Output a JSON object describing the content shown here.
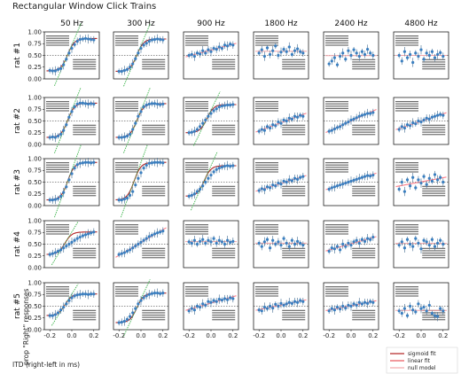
{
  "title": "Rectangular Window Click Trains",
  "columns": [
    "50 Hz",
    "300 Hz",
    "900 Hz",
    "1800 Hz",
    "2400 Hz",
    "4800 Hz"
  ],
  "rows": [
    "rat #1",
    "rat #2",
    "rat #3",
    "rat #4",
    "rat #5"
  ],
  "xlabel": "ITD (right-left in ms)",
  "ylabel": "prop \"Right\" responses",
  "x_ticks": [
    "-0.2",
    "0.0",
    "0.2"
  ],
  "y_ticks": [
    "0.00",
    "0.25",
    "0.50",
    "0.75",
    "1.00"
  ],
  "legend": [
    {
      "label": "sigmoid fit",
      "color": "#b22222"
    },
    {
      "label": "linear fit",
      "color": "#e8535a"
    },
    {
      "label": "null model",
      "color": "#f4a6aa"
    }
  ],
  "colors": {
    "points": "#3a7fc0",
    "errorbars": "#5a7e9e",
    "sigmoid": "#b22222",
    "linear": "#ff7f8a",
    "slope": "#3cb44b",
    "chance": "#222222"
  },
  "chart_data": {
    "type": "scatter",
    "layout": "grid",
    "xlim": [
      -0.25,
      0.25
    ],
    "ylim": [
      0,
      1
    ],
    "x": [
      -0.2,
      -0.175,
      -0.15,
      -0.125,
      -0.1,
      -0.075,
      -0.05,
      -0.025,
      0.0,
      0.025,
      0.05,
      0.075,
      0.1,
      0.125,
      0.15,
      0.175,
      0.2
    ],
    "chance_line": 0.5,
    "panels": [
      [
        {
          "fit": "sigmoid",
          "y": [
            0.18,
            0.17,
            0.17,
            0.2,
            0.22,
            0.3,
            0.42,
            0.55,
            0.65,
            0.73,
            0.8,
            0.84,
            0.85,
            0.86,
            0.85,
            0.84,
            0.83
          ]
        },
        {
          "fit": "sigmoid",
          "y": [
            0.16,
            0.16,
            0.18,
            0.2,
            0.25,
            0.32,
            0.43,
            0.55,
            0.65,
            0.72,
            0.76,
            0.8,
            0.83,
            0.84,
            0.85,
            0.84,
            0.83
          ]
        },
        {
          "fit": "linear",
          "y": [
            0.5,
            0.52,
            0.48,
            0.55,
            0.53,
            0.6,
            0.55,
            0.62,
            0.58,
            0.65,
            0.63,
            0.68,
            0.65,
            0.72,
            0.7,
            0.74,
            0.72
          ]
        },
        {
          "fit": "null",
          "y": [
            0.55,
            0.62,
            0.48,
            0.66,
            0.52,
            0.6,
            0.7,
            0.5,
            0.57,
            0.63,
            0.58,
            0.68,
            0.52,
            0.6,
            0.64,
            0.58,
            0.55
          ]
        },
        {
          "fit": "null",
          "y": [
            0.32,
            0.38,
            0.45,
            0.3,
            0.48,
            0.55,
            0.42,
            0.6,
            0.5,
            0.62,
            0.55,
            0.48,
            0.58,
            0.52,
            0.63,
            0.55,
            0.5
          ]
        },
        {
          "fit": "null",
          "y": [
            0.5,
            0.38,
            0.58,
            0.45,
            0.52,
            0.35,
            0.55,
            0.48,
            0.62,
            0.42,
            0.55,
            0.5,
            0.58,
            0.45,
            0.52,
            0.56,
            0.48
          ]
        }
      ],
      [
        {
          "fit": "sigmoid",
          "y": [
            0.15,
            0.16,
            0.15,
            0.18,
            0.22,
            0.3,
            0.42,
            0.58,
            0.7,
            0.8,
            0.86,
            0.88,
            0.88,
            0.87,
            0.86,
            0.87,
            0.86
          ]
        },
        {
          "fit": "sigmoid",
          "y": [
            0.15,
            0.15,
            0.16,
            0.18,
            0.22,
            0.32,
            0.45,
            0.6,
            0.7,
            0.8,
            0.84,
            0.86,
            0.87,
            0.87,
            0.86,
            0.85,
            0.86
          ]
        },
        {
          "fit": "sigmoid",
          "y": [
            0.25,
            0.26,
            0.28,
            0.32,
            0.38,
            0.45,
            0.52,
            0.6,
            0.66,
            0.72,
            0.76,
            0.8,
            0.82,
            0.83,
            0.84,
            0.84,
            0.85
          ]
        },
        {
          "fit": "linear",
          "y": [
            0.28,
            0.32,
            0.3,
            0.38,
            0.35,
            0.42,
            0.4,
            0.48,
            0.45,
            0.52,
            0.5,
            0.56,
            0.54,
            0.6,
            0.58,
            0.62,
            0.6
          ]
        },
        {
          "fit": "linear",
          "y": [
            0.28,
            0.3,
            0.33,
            0.36,
            0.38,
            0.42,
            0.45,
            0.48,
            0.52,
            0.54,
            0.57,
            0.6,
            0.62,
            0.64,
            0.66,
            0.66,
            0.68
          ]
        },
        {
          "fit": "linear",
          "y": [
            0.32,
            0.38,
            0.35,
            0.42,
            0.4,
            0.46,
            0.44,
            0.5,
            0.48,
            0.52,
            0.56,
            0.54,
            0.58,
            0.6,
            0.62,
            0.64,
            0.62
          ]
        }
      ],
      [
        {
          "fit": "sigmoid",
          "y": [
            0.12,
            0.12,
            0.13,
            0.15,
            0.2,
            0.28,
            0.4,
            0.55,
            0.68,
            0.8,
            0.87,
            0.9,
            0.91,
            0.92,
            0.92,
            0.91,
            0.92
          ]
        },
        {
          "fit": "sigmoid",
          "y": [
            0.12,
            0.12,
            0.14,
            0.16,
            0.22,
            0.3,
            0.44,
            0.58,
            0.7,
            0.8,
            0.86,
            0.9,
            0.91,
            0.92,
            0.92,
            0.92,
            0.91
          ]
        },
        {
          "fit": "sigmoid",
          "y": [
            0.2,
            0.22,
            0.25,
            0.3,
            0.35,
            0.42,
            0.5,
            0.58,
            0.65,
            0.72,
            0.77,
            0.8,
            0.82,
            0.84,
            0.85,
            0.84,
            0.85
          ]
        },
        {
          "fit": "linear",
          "y": [
            0.32,
            0.36,
            0.34,
            0.4,
            0.38,
            0.44,
            0.42,
            0.48,
            0.46,
            0.52,
            0.5,
            0.55,
            0.53,
            0.58,
            0.56,
            0.6,
            0.62
          ]
        },
        {
          "fit": "linear",
          "y": [
            0.35,
            0.38,
            0.4,
            0.42,
            0.44,
            0.46,
            0.48,
            0.5,
            0.52,
            0.54,
            0.56,
            0.58,
            0.6,
            0.62,
            0.64,
            0.63,
            0.65
          ]
        },
        {
          "fit": "linear",
          "y": [
            0.35,
            0.5,
            0.3,
            0.55,
            0.42,
            0.6,
            0.38,
            0.55,
            0.48,
            0.62,
            0.45,
            0.58,
            0.52,
            0.66,
            0.55,
            0.6,
            0.5
          ]
        }
      ],
      [
        {
          "fit": "sigmoid",
          "y": [
            0.28,
            0.3,
            0.32,
            0.35,
            0.38,
            0.42,
            0.46,
            0.5,
            0.54,
            0.58,
            0.62,
            0.65,
            0.68,
            0.7,
            0.72,
            0.74,
            0.76
          ]
        },
        {
          "fit": "linear",
          "y": [
            0.28,
            0.3,
            0.32,
            0.35,
            0.38,
            0.42,
            0.46,
            0.5,
            0.54,
            0.58,
            0.62,
            0.66,
            0.69,
            0.72,
            0.74,
            0.76,
            0.78
          ]
        },
        {
          "fit": "null",
          "y": [
            0.55,
            0.52,
            0.58,
            0.5,
            0.56,
            0.6,
            0.52,
            0.58,
            0.55,
            0.62,
            0.52,
            0.58,
            0.55,
            0.5,
            0.58,
            0.54,
            0.56
          ]
        },
        {
          "fit": "null",
          "y": [
            0.52,
            0.45,
            0.55,
            0.6,
            0.42,
            0.58,
            0.5,
            0.55,
            0.48,
            0.62,
            0.52,
            0.45,
            0.58,
            0.5,
            0.56,
            0.52,
            0.48
          ]
        },
        {
          "fit": "linear",
          "y": [
            0.35,
            0.42,
            0.4,
            0.45,
            0.38,
            0.5,
            0.45,
            0.52,
            0.48,
            0.55,
            0.58,
            0.52,
            0.6,
            0.56,
            0.62,
            0.6,
            0.65
          ]
        },
        {
          "fit": "null",
          "y": [
            0.48,
            0.55,
            0.42,
            0.6,
            0.5,
            0.45,
            0.62,
            0.52,
            0.4,
            0.58,
            0.55,
            0.48,
            0.6,
            0.45,
            0.52,
            0.58,
            0.5
          ]
        }
      ],
      [
        {
          "fit": "sigmoid",
          "y": [
            0.3,
            0.3,
            0.32,
            0.36,
            0.42,
            0.48,
            0.55,
            0.62,
            0.68,
            0.72,
            0.74,
            0.75,
            0.76,
            0.76,
            0.75,
            0.76,
            0.76
          ]
        },
        {
          "fit": "sigmoid",
          "y": [
            0.15,
            0.16,
            0.18,
            0.22,
            0.28,
            0.36,
            0.45,
            0.55,
            0.62,
            0.68,
            0.72,
            0.75,
            0.77,
            0.78,
            0.78,
            0.77,
            0.78
          ]
        },
        {
          "fit": "linear",
          "y": [
            0.4,
            0.45,
            0.42,
            0.5,
            0.48,
            0.55,
            0.52,
            0.6,
            0.58,
            0.62,
            0.6,
            0.65,
            0.63,
            0.66,
            0.64,
            0.68,
            0.66
          ]
        },
        {
          "fit": "linear",
          "y": [
            0.42,
            0.4,
            0.48,
            0.45,
            0.5,
            0.46,
            0.54,
            0.5,
            0.56,
            0.52,
            0.55,
            0.58,
            0.56,
            0.6,
            0.58,
            0.62,
            0.6
          ]
        },
        {
          "fit": "linear",
          "y": [
            0.4,
            0.45,
            0.42,
            0.48,
            0.44,
            0.5,
            0.46,
            0.52,
            0.5,
            0.55,
            0.52,
            0.58,
            0.55,
            0.58,
            0.56,
            0.6,
            0.58
          ]
        },
        {
          "fit": "null",
          "y": [
            0.4,
            0.35,
            0.45,
            0.3,
            0.5,
            0.42,
            0.38,
            0.55,
            0.45,
            0.48,
            0.4,
            0.52,
            0.35,
            0.3,
            0.28,
            0.45,
            0.4
          ]
        }
      ]
    ]
  }
}
